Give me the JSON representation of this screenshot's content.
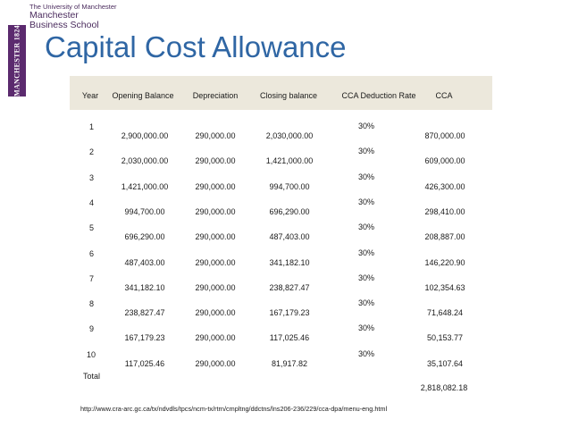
{
  "logo": {
    "line1": "The University of Manchester",
    "line2": "Manchester",
    "line3": "Business School",
    "bar_text": "MANCHESTER 1824"
  },
  "title": "Capital Cost Allowance",
  "table": {
    "headers": [
      "Year",
      "Opening Balance",
      "Depreciation",
      "Closing balance",
      "CCA Deduction Rate",
      "CCA"
    ],
    "rows": [
      {
        "year": "1",
        "opening": "2,900,000.00",
        "depreciation": "290,000.00",
        "closing": "2,030,000.00",
        "rate": "30%",
        "cca": "870,000.00"
      },
      {
        "year": "2",
        "opening": "2,030,000.00",
        "depreciation": "290,000.00",
        "closing": "1,421,000.00",
        "rate": "30%",
        "cca": "609,000.00"
      },
      {
        "year": "3",
        "opening": "1,421,000.00",
        "depreciation": "290,000.00",
        "closing": "994,700.00",
        "rate": "30%",
        "cca": "426,300.00"
      },
      {
        "year": "4",
        "opening": "994,700.00",
        "depreciation": "290,000.00",
        "closing": "696,290.00",
        "rate": "30%",
        "cca": "298,410.00"
      },
      {
        "year": "5",
        "opening": "696,290.00",
        "depreciation": "290,000.00",
        "closing": "487,403.00",
        "rate": "30%",
        "cca": "208,887.00"
      },
      {
        "year": "6",
        "opening": "487,403.00",
        "depreciation": "290,000.00",
        "closing": "341,182.10",
        "rate": "30%",
        "cca": "146,220.90"
      },
      {
        "year": "7",
        "opening": "341,182.10",
        "depreciation": "290,000.00",
        "closing": "238,827.47",
        "rate": "30%",
        "cca": "102,354.63"
      },
      {
        "year": "8",
        "opening": "238,827.47",
        "depreciation": "290,000.00",
        "closing": "167,179.23",
        "rate": "30%",
        "cca": "71,648.24"
      },
      {
        "year": "9",
        "opening": "167,179.23",
        "depreciation": "290,000.00",
        "closing": "117,025.46",
        "rate": "30%",
        "cca": "50,153.77"
      },
      {
        "year": "10",
        "opening": "117,025.46",
        "depreciation": "290,000.00",
        "closing": "81,917.82",
        "rate": "30%",
        "cca": "35,107.64"
      }
    ],
    "total_label": "Total",
    "total_value": "2,818,082.18"
  },
  "source_url": "http://www.cra-arc.gc.ca/tx/ndvdls/tpcs/ncm-tx/rtrn/cmpltng/ddctns/lns206-236/229/cca-dpa/menu-eng.html"
}
